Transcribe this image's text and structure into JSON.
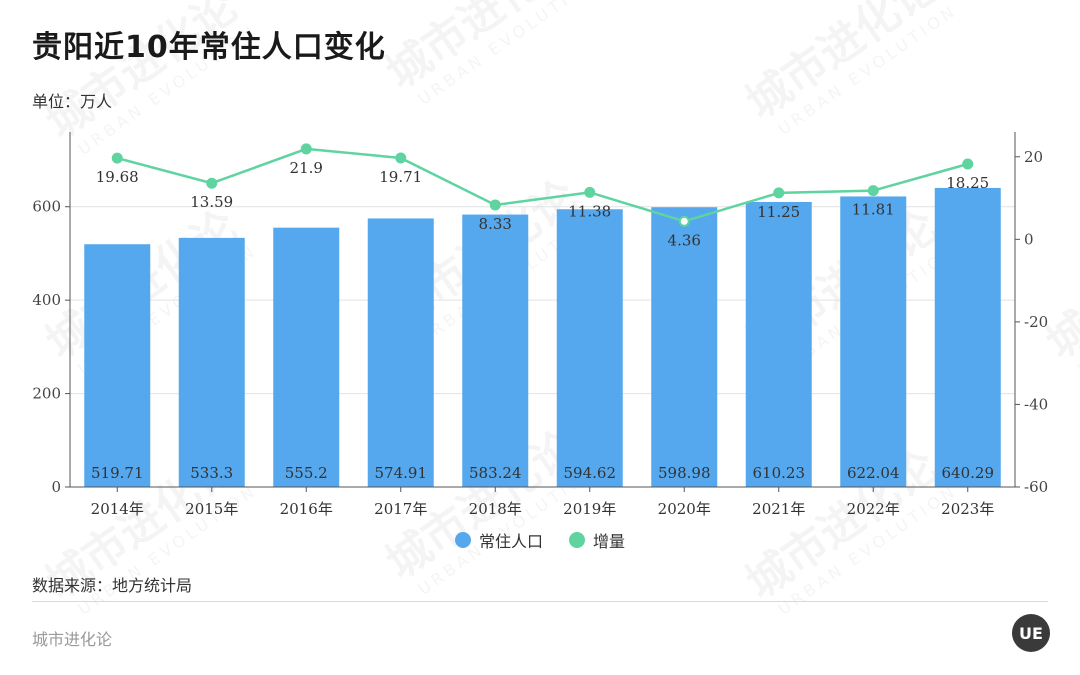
{
  "title": "贵阳近10年常住人口变化",
  "unit": "单位：万人",
  "source": "数据来源：地方统计局",
  "brand": "城市进化论",
  "logo_text": "UE",
  "watermark": {
    "text": "城市进化论",
    "subtext": "URBAN EVOLUTION"
  },
  "legend": {
    "bar_label": "常住人口",
    "line_label": "增量"
  },
  "colors": {
    "bar": "#55a8ee",
    "line": "#5fd3a0",
    "grid": "#e2e2e2",
    "axis": "#555555"
  },
  "chart_data": {
    "type": "bar",
    "categories": [
      "2014年",
      "2015年",
      "2016年",
      "2017年",
      "2018年",
      "2019年",
      "2020年",
      "2021年",
      "2022年",
      "2023年"
    ],
    "series": [
      {
        "name": "常住人口",
        "type": "bar",
        "axis": "left",
        "values": [
          519.71,
          533.3,
          555.2,
          574.91,
          583.24,
          594.62,
          598.98,
          610.23,
          622.04,
          640.29
        ]
      },
      {
        "name": "增量",
        "type": "line",
        "axis": "right",
        "values": [
          19.68,
          13.59,
          21.9,
          19.71,
          8.33,
          11.38,
          4.36,
          11.25,
          11.81,
          18.25
        ]
      }
    ],
    "y_left": {
      "min": 0,
      "max": 760,
      "ticks": [
        0,
        200,
        400,
        600
      ]
    },
    "y_right": {
      "min": -60,
      "max": 26,
      "ticks": [
        -60,
        -40,
        -20,
        0,
        20
      ]
    },
    "grid": true,
    "legend_position": "bottom-center"
  }
}
